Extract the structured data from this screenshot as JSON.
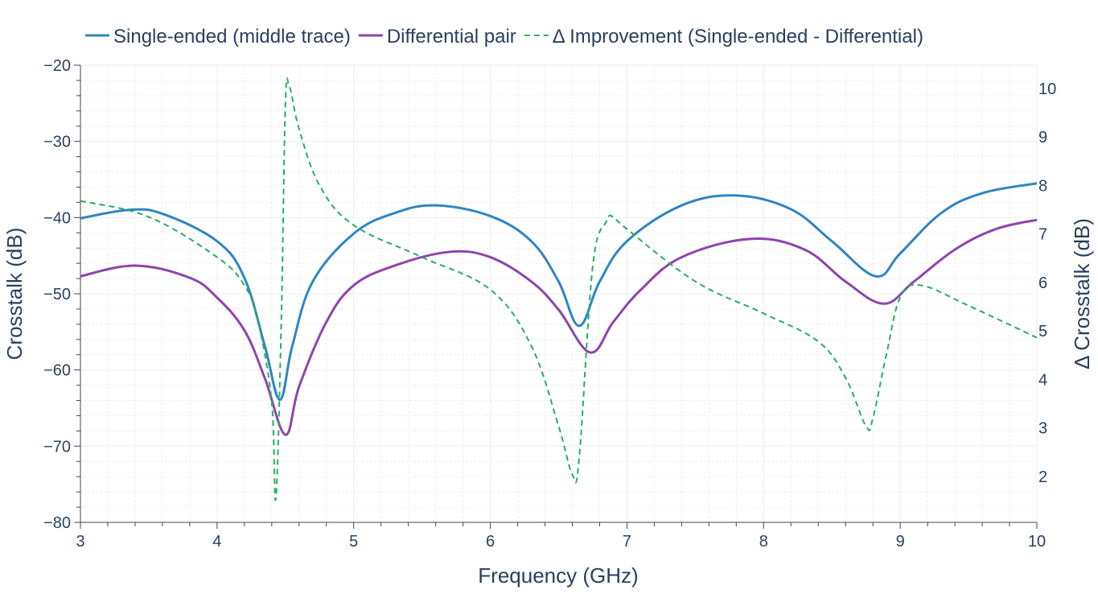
{
  "chart_data": {
    "type": "line",
    "title": "",
    "xlabel": "Frequency (GHz)",
    "ylabel": "Crosstalk (dB)",
    "y2label": "Δ Crosstalk (dB)",
    "xlim": [
      3,
      10
    ],
    "ylim": [
      -80,
      -20
    ],
    "y2lim": [
      1.05,
      10.48
    ],
    "xticks": [
      3,
      4,
      5,
      6,
      7,
      8,
      9,
      10
    ],
    "yticks": [
      -80,
      -70,
      -60,
      -50,
      -40,
      -30,
      -20
    ],
    "y2ticks": [
      2,
      3,
      4,
      5,
      6,
      7,
      8,
      9,
      10
    ],
    "grid": true,
    "legend_position": "top",
    "series": [
      {
        "name": "Single-ended (middle trace)",
        "color": "#2e86c1",
        "axis": "left",
        "dash": false,
        "x": [
          3,
          3.35,
          3.6,
          4.0,
          4.2,
          4.35,
          4.46,
          4.55,
          4.7,
          5.0,
          5.3,
          5.6,
          6.0,
          6.3,
          6.5,
          6.65,
          6.8,
          7.0,
          7.4,
          7.8,
          8.2,
          8.5,
          8.82,
          9.0,
          9.3,
          9.6,
          10
        ],
        "y": [
          -40.1,
          -39.0,
          -39.5,
          -43.1,
          -47.9,
          -56.9,
          -63.9,
          -56.9,
          -48.4,
          -42.1,
          -39.4,
          -38.4,
          -39.8,
          -43.1,
          -48.4,
          -54.2,
          -48.4,
          -43.1,
          -38.4,
          -37.1,
          -38.9,
          -43.1,
          -47.7,
          -44.7,
          -39.4,
          -36.8,
          -35.5
        ]
      },
      {
        "name": "Differential pair",
        "color": "#8e44ad",
        "axis": "left",
        "dash": false,
        "x": [
          3,
          3.4,
          3.8,
          4.0,
          4.2,
          4.35,
          4.5,
          4.6,
          4.8,
          5.0,
          5.3,
          5.7,
          6.0,
          6.3,
          6.5,
          6.73,
          6.9,
          7.1,
          7.4,
          7.9,
          8.3,
          8.6,
          8.88,
          9.1,
          9.4,
          9.7,
          10
        ],
        "y": [
          -47.7,
          -46.3,
          -47.9,
          -50.5,
          -54.8,
          -61.1,
          -68.5,
          -62.2,
          -53.7,
          -48.9,
          -46.3,
          -44.5,
          -45.2,
          -48.4,
          -52.1,
          -57.7,
          -53.7,
          -49.5,
          -45.2,
          -42.8,
          -44.2,
          -48.4,
          -51.3,
          -48.4,
          -44.2,
          -41.5,
          -40.3
        ]
      },
      {
        "name": "Δ Improvement (Single-ended - Differential)",
        "color": "#27ae60",
        "axis": "right",
        "dash": true,
        "x": [
          3,
          3.5,
          4.0,
          4.2,
          4.3,
          4.4,
          4.43,
          4.47,
          4.5,
          4.53,
          4.6,
          4.75,
          5.0,
          5.5,
          6.0,
          6.3,
          6.5,
          6.6,
          6.65,
          6.75,
          6.85,
          6.9,
          7.0,
          7.5,
          8.0,
          8.4,
          8.6,
          8.75,
          8.8,
          8.9,
          9.0,
          9.15,
          9.5,
          10
        ],
        "y": [
          7.68,
          7.35,
          6.52,
          5.94,
          5.19,
          3.53,
          1.54,
          5.19,
          9.67,
          10.03,
          9.17,
          8.0,
          7.18,
          6.52,
          5.85,
          4.69,
          3.03,
          2.04,
          2.37,
          6.35,
          7.26,
          7.35,
          7.1,
          6.02,
          5.36,
          4.78,
          4.03,
          3.03,
          3.2,
          4.53,
          5.69,
          5.94,
          5.52,
          4.86
        ]
      }
    ]
  }
}
